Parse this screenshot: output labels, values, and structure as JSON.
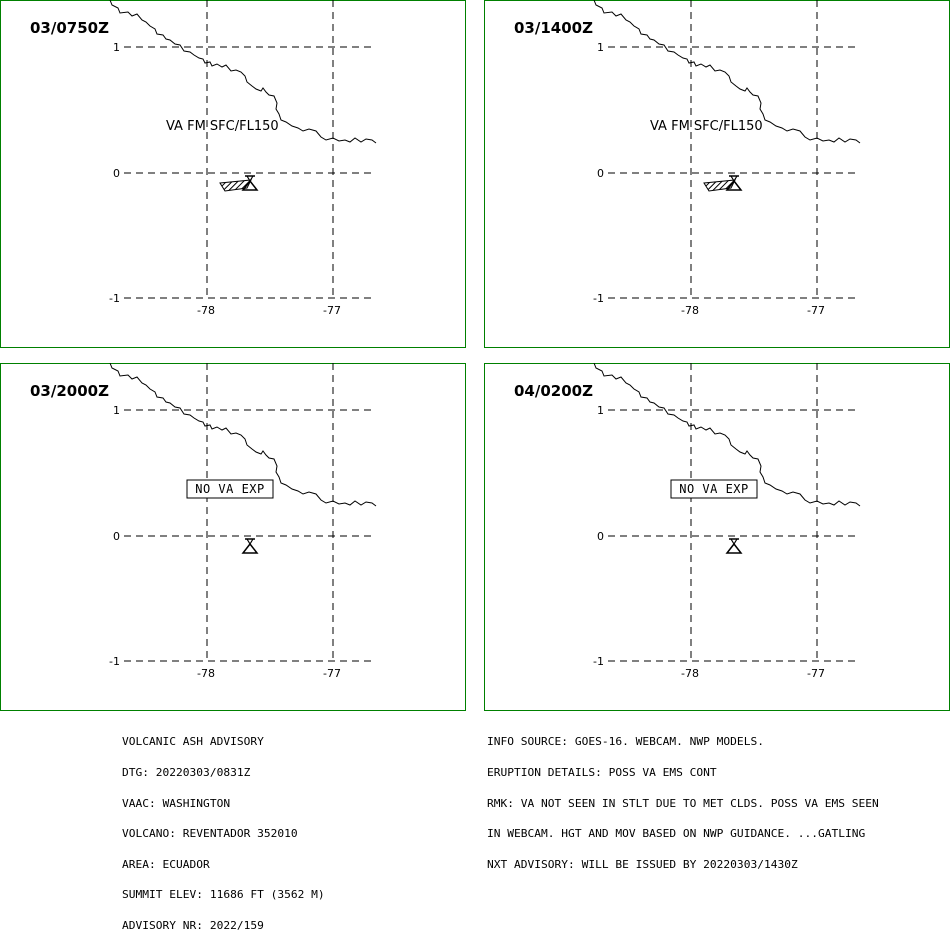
{
  "panels": [
    {
      "time": "03/0750Z",
      "annotation": "VA FM SFC/FL150",
      "kind": "label",
      "polygon": true
    },
    {
      "time": "03/1400Z",
      "annotation": "VA FM SFC/FL150",
      "kind": "label",
      "polygon": true
    },
    {
      "time": "03/2000Z",
      "annotation": "NO VA EXP",
      "kind": "box",
      "polygon": false
    },
    {
      "time": "04/0200Z",
      "annotation": "NO VA EXP",
      "kind": "box",
      "polygon": false
    }
  ],
  "axes": {
    "lat_labels": [
      "1",
      "0",
      "-1"
    ],
    "lon_labels": [
      "-78",
      "-77"
    ]
  },
  "advisory_left": [
    "VOLCANIC ASH ADVISORY",
    "DTG: 20220303/0831Z",
    "VAAC: WASHINGTON",
    "VOLCANO: REVENTADOR 352010",
    "AREA: ECUADOR",
    "SUMMIT ELEV: 11686 FT (3562 M)",
    "ADVISORY NR: 2022/159"
  ],
  "advisory_right": [
    "INFO SOURCE: GOES-16. WEBCAM. NWP MODELS.",
    "ERUPTION DETAILS: POSS VA EMS CONT",
    "RMK: VA NOT SEEN IN STLT DUE TO MET CLDS. POSS VA EMS SEEN",
    "IN WEBCAM. HGT AND MOV BASED ON NWP GUIDANCE. ...GATLING",
    "NXT ADVISORY: WILL BE ISSUED BY 20220303/1430Z"
  ],
  "colors": {
    "frame": "#008000",
    "lines": "#000000"
  },
  "icons": {
    "volcano": "volcano-triangle-icon"
  }
}
